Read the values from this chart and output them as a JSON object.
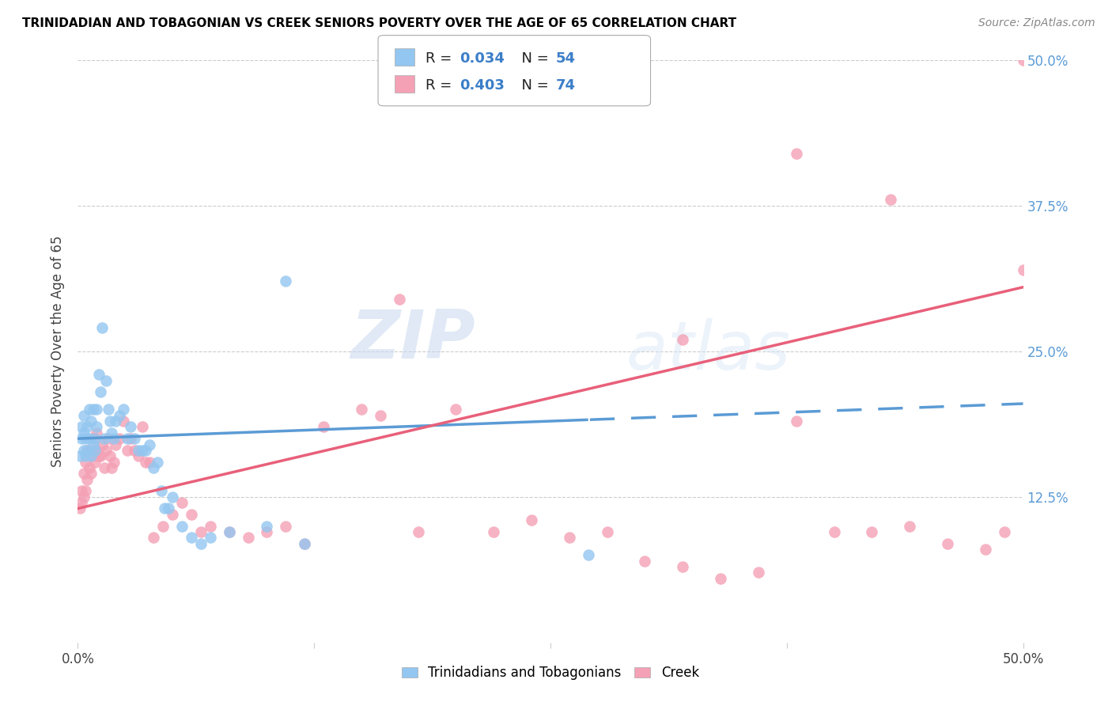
{
  "title": "TRINIDADIAN AND TOBAGONIAN VS CREEK SENIORS POVERTY OVER THE AGE OF 65 CORRELATION CHART",
  "source": "Source: ZipAtlas.com",
  "ylabel": "Seniors Poverty Over the Age of 65",
  "xlim": [
    0,
    0.5
  ],
  "ylim": [
    0,
    0.5
  ],
  "legend_series1": "Trinidadians and Tobagonians",
  "legend_series2": "Creek",
  "color_blue": "#93C6F0",
  "color_pink": "#F4A0B5",
  "line_color_blue": "#5B9BD5",
  "line_color_pink": "#E8607A",
  "R1": 0.034,
  "N1": 54,
  "R2": 0.403,
  "N2": 74,
  "blue_x": [
    0.001,
    0.002,
    0.002,
    0.003,
    0.003,
    0.003,
    0.004,
    0.004,
    0.005,
    0.005,
    0.006,
    0.006,
    0.007,
    0.007,
    0.008,
    0.008,
    0.009,
    0.009,
    0.01,
    0.01,
    0.011,
    0.012,
    0.013,
    0.014,
    0.015,
    0.016,
    0.017,
    0.018,
    0.019,
    0.02,
    0.022,
    0.024,
    0.026,
    0.028,
    0.03,
    0.032,
    0.034,
    0.036,
    0.038,
    0.04,
    0.042,
    0.044,
    0.046,
    0.048,
    0.05,
    0.055,
    0.06,
    0.065,
    0.07,
    0.08,
    0.1,
    0.11,
    0.12,
    0.27
  ],
  "blue_y": [
    0.16,
    0.175,
    0.185,
    0.165,
    0.18,
    0.195,
    0.16,
    0.175,
    0.165,
    0.185,
    0.175,
    0.2,
    0.16,
    0.19,
    0.17,
    0.2,
    0.175,
    0.165,
    0.2,
    0.185,
    0.23,
    0.215,
    0.27,
    0.175,
    0.225,
    0.2,
    0.19,
    0.18,
    0.175,
    0.19,
    0.195,
    0.2,
    0.175,
    0.185,
    0.175,
    0.165,
    0.165,
    0.165,
    0.17,
    0.15,
    0.155,
    0.13,
    0.115,
    0.115,
    0.125,
    0.1,
    0.09,
    0.085,
    0.09,
    0.095,
    0.1,
    0.31,
    0.085,
    0.075
  ],
  "pink_x": [
    0.001,
    0.002,
    0.002,
    0.003,
    0.003,
    0.004,
    0.004,
    0.005,
    0.005,
    0.006,
    0.007,
    0.007,
    0.008,
    0.008,
    0.009,
    0.01,
    0.01,
    0.011,
    0.012,
    0.013,
    0.014,
    0.015,
    0.016,
    0.017,
    0.018,
    0.019,
    0.02,
    0.022,
    0.024,
    0.026,
    0.028,
    0.03,
    0.032,
    0.034,
    0.036,
    0.038,
    0.04,
    0.045,
    0.05,
    0.055,
    0.06,
    0.065,
    0.07,
    0.08,
    0.09,
    0.1,
    0.11,
    0.12,
    0.13,
    0.15,
    0.16,
    0.17,
    0.18,
    0.2,
    0.22,
    0.24,
    0.26,
    0.28,
    0.3,
    0.32,
    0.34,
    0.36,
    0.38,
    0.4,
    0.42,
    0.44,
    0.46,
    0.48,
    0.49,
    0.5,
    0.32,
    0.38,
    0.43,
    0.5
  ],
  "pink_y": [
    0.115,
    0.12,
    0.13,
    0.125,
    0.145,
    0.13,
    0.155,
    0.14,
    0.165,
    0.15,
    0.145,
    0.165,
    0.16,
    0.175,
    0.155,
    0.165,
    0.18,
    0.16,
    0.16,
    0.17,
    0.15,
    0.165,
    0.175,
    0.16,
    0.15,
    0.155,
    0.17,
    0.175,
    0.19,
    0.165,
    0.175,
    0.165,
    0.16,
    0.185,
    0.155,
    0.155,
    0.09,
    0.1,
    0.11,
    0.12,
    0.11,
    0.095,
    0.1,
    0.095,
    0.09,
    0.095,
    0.1,
    0.085,
    0.185,
    0.2,
    0.195,
    0.295,
    0.095,
    0.2,
    0.095,
    0.105,
    0.09,
    0.095,
    0.07,
    0.065,
    0.055,
    0.06,
    0.19,
    0.095,
    0.095,
    0.1,
    0.085,
    0.08,
    0.095,
    0.5,
    0.26,
    0.42,
    0.38,
    0.32
  ]
}
